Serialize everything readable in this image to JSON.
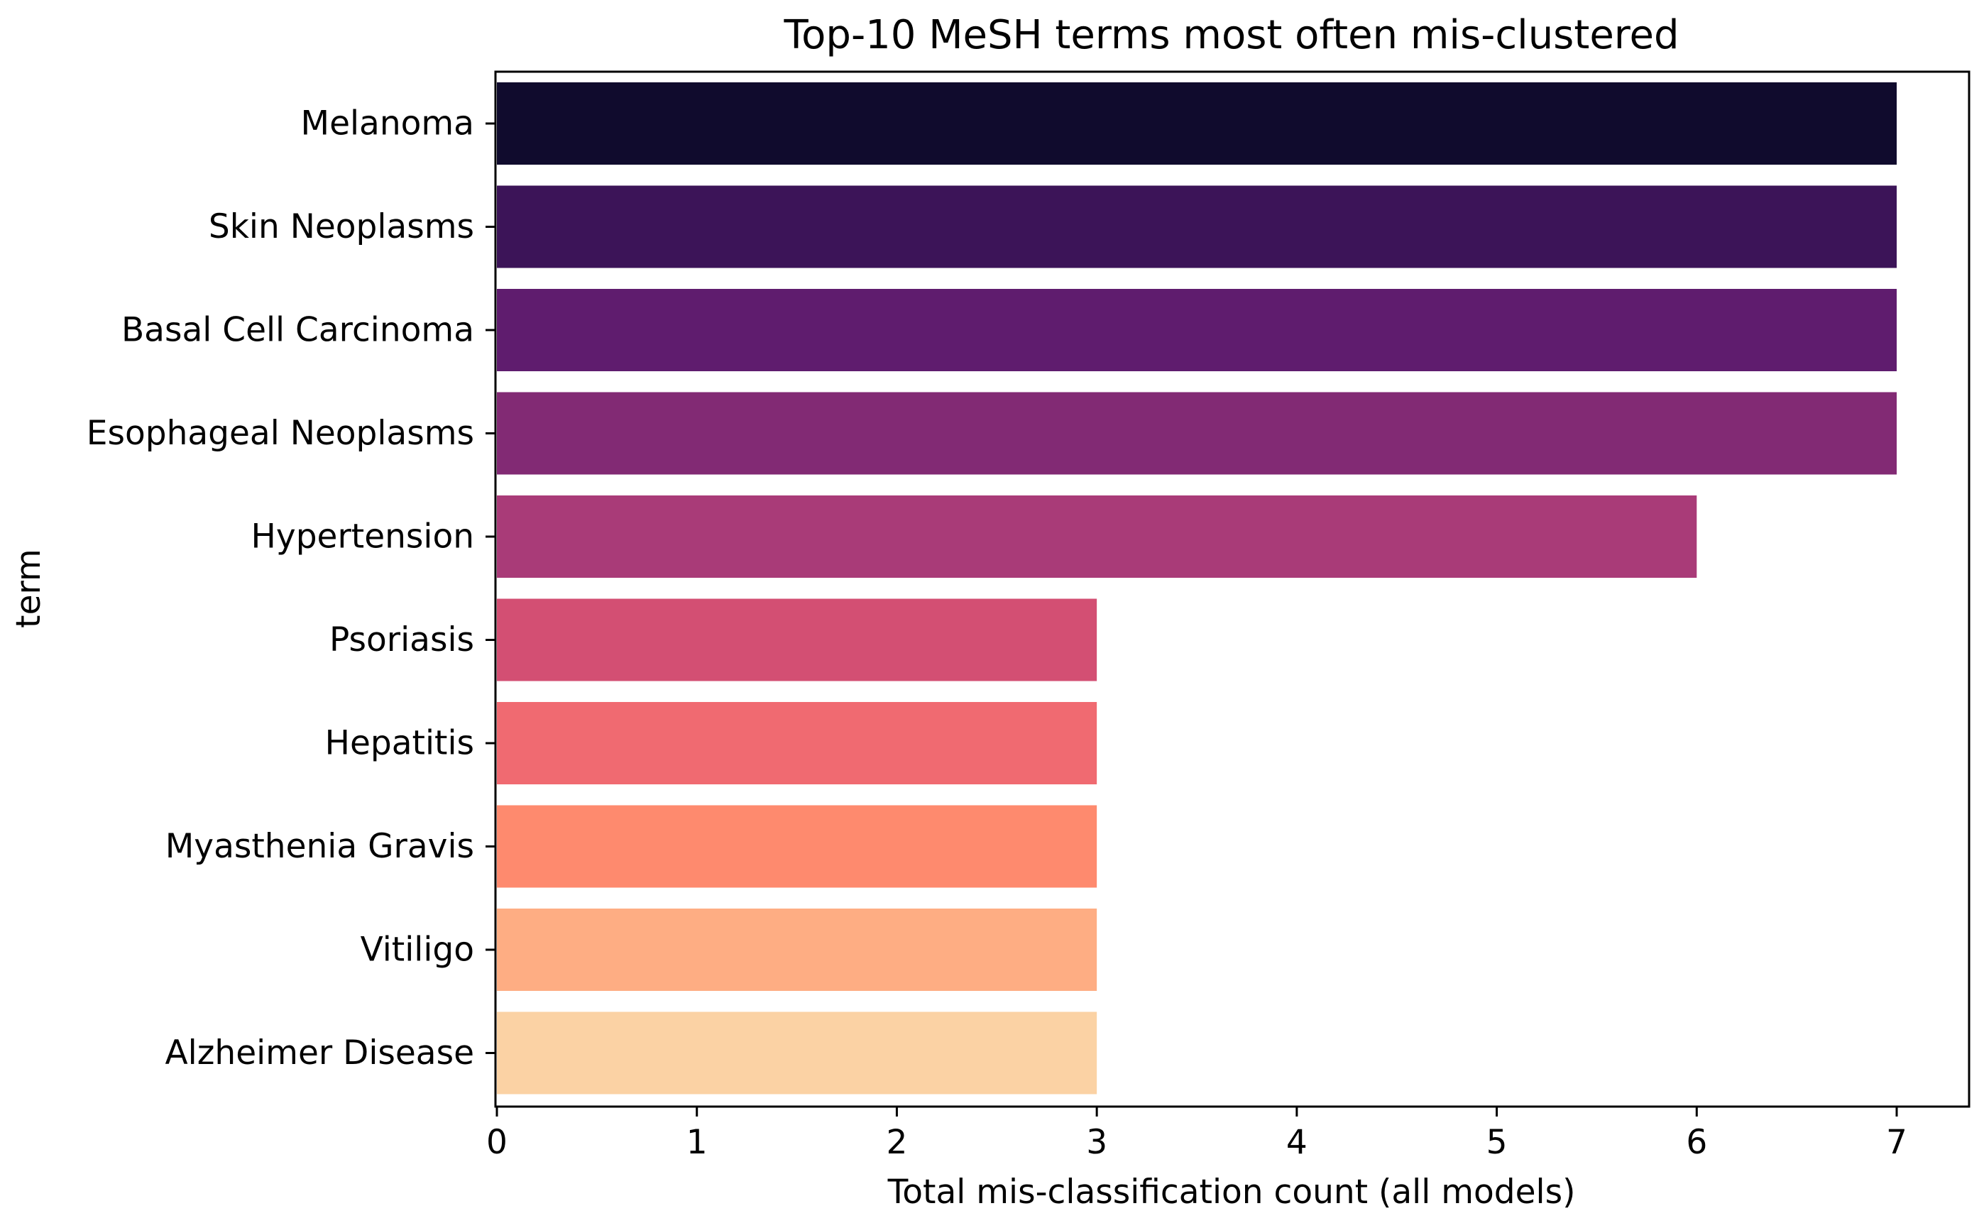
{
  "chart_data": {
    "type": "bar",
    "orientation": "horizontal",
    "title": "Top-10 MeSH terms most often mis-clustered",
    "xlabel": "Total mis-classification count (all models)",
    "ylabel": "term",
    "xlim": [
      0,
      7.35
    ],
    "xticks": [
      "0",
      "1",
      "2",
      "3",
      "4",
      "5",
      "6",
      "7"
    ],
    "grid": false,
    "legend": "none",
    "categories": [
      "Melanoma",
      "Skin Neoplasms",
      "Basal Cell Carcinoma",
      "Esophageal Neoplasms",
      "Hypertension",
      "Psoriasis",
      "Hepatitis",
      "Myasthenia Gravis",
      "Vitiligo",
      "Alzheimer Disease"
    ],
    "values": [
      7,
      7,
      7,
      7,
      6,
      3,
      3,
      3,
      3,
      3
    ],
    "colors": [
      "#100b2d",
      "#3c1458",
      "#5f1c6e",
      "#822a74",
      "#a93b78",
      "#d34f73",
      "#f06a71",
      "#fe8a6e",
      "#fead83",
      "#fbd2a4"
    ]
  }
}
